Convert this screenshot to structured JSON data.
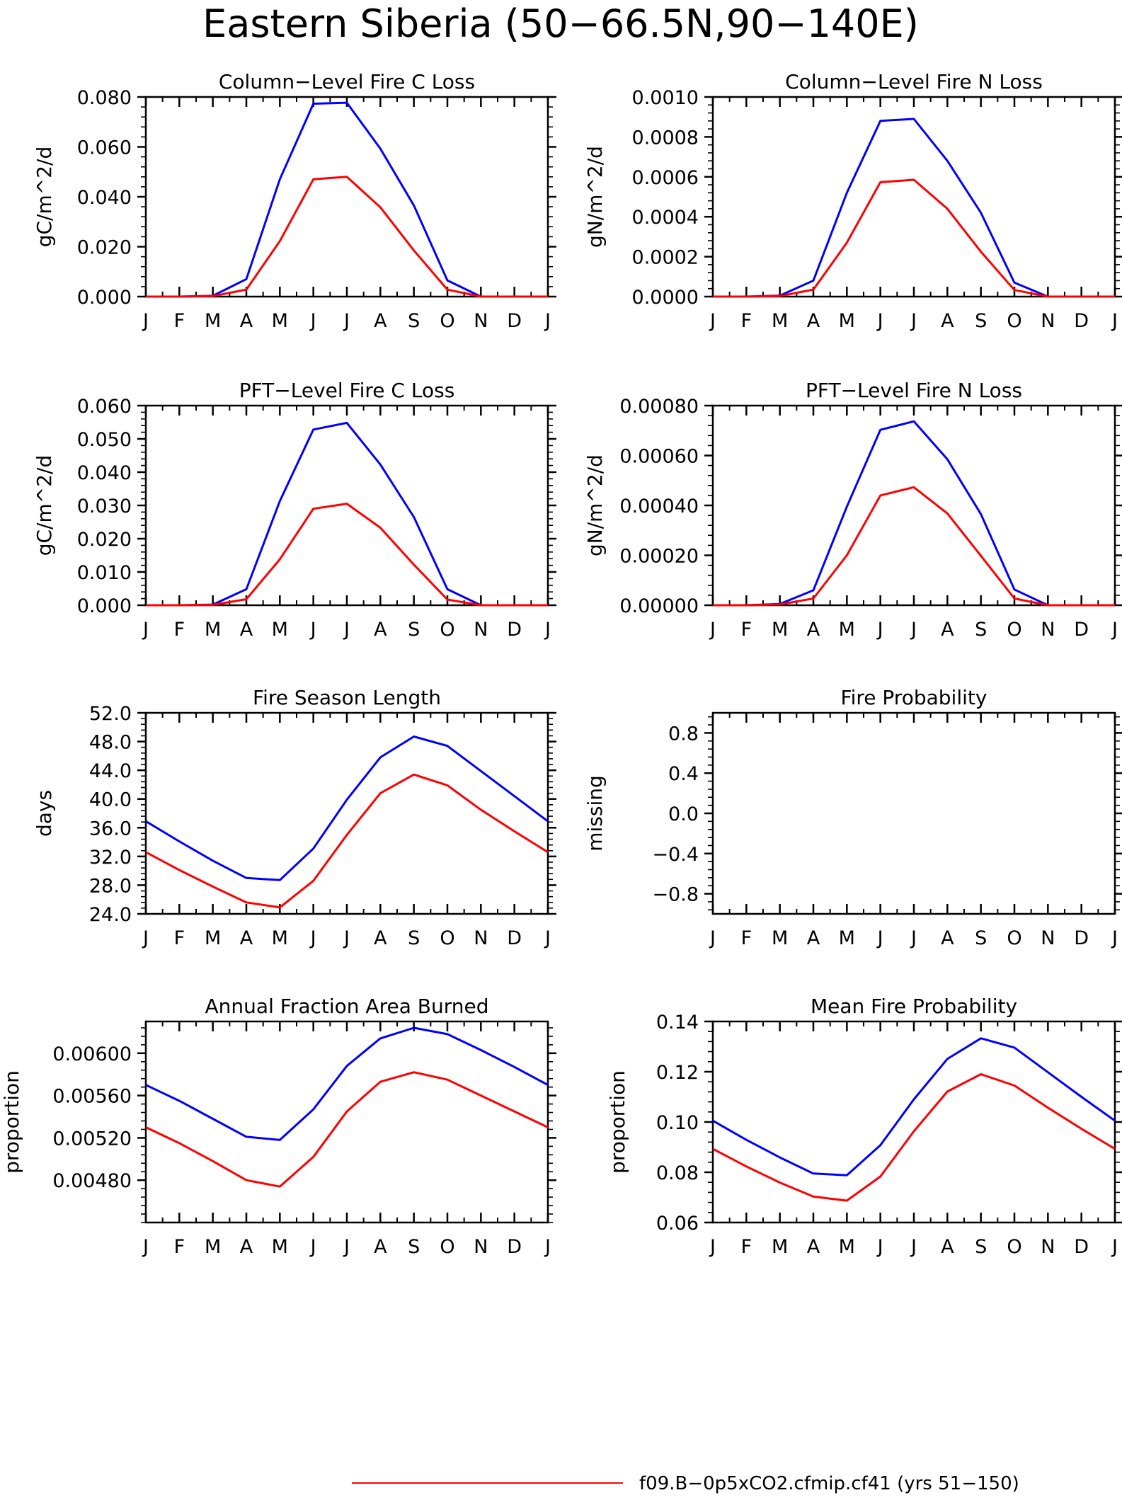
{
  "title": "Eastern Siberia (50−66.5N,90−140E)",
  "months": [
    "J",
    "F",
    "M",
    "A",
    "M",
    "J",
    "J",
    "A",
    "S",
    "O",
    "N",
    "D",
    "J"
  ],
  "colors": {
    "series_1": "#ff0000",
    "series_2": "#0000ff",
    "axis": "#000000"
  },
  "legend": {
    "label": "f09.B−0p5xCO2.cfmip.cf41 (yrs 51−150)",
    "color": "#ff0000"
  },
  "chart_data": [
    {
      "type": "line",
      "title": "Column−Level Fire C Loss",
      "ylabel": "gC/m^2/d",
      "ylim": [
        0,
        0.08
      ],
      "yticks": [
        0,
        0.02,
        0.04,
        0.06,
        0.08
      ],
      "yticklabels": [
        "0.000",
        "0.020",
        "0.040",
        "0.060",
        "0.080"
      ],
      "x": [
        "J",
        "F",
        "M",
        "A",
        "M",
        "J",
        "J",
        "A",
        "S",
        "O",
        "N",
        "D",
        "J"
      ],
      "series": [
        {
          "color": "#0000ff",
          "values": [
            0,
            0,
            0.0003,
            0.007,
            0.047,
            0.0773,
            0.0777,
            0.0593,
            0.0365,
            0.0065,
            0.0,
            0,
            0
          ]
        },
        {
          "color": "#ff0000",
          "values": [
            0,
            0,
            0.0002,
            0.0028,
            0.0222,
            0.047,
            0.048,
            0.0358,
            0.0185,
            0.0028,
            0.0,
            0,
            0
          ]
        }
      ]
    },
    {
      "type": "line",
      "title": "Column−Level Fire N Loss",
      "ylabel": "gN/m^2/d",
      "ylim": [
        0,
        0.001
      ],
      "yticks": [
        0,
        0.0002,
        0.0004,
        0.0006,
        0.0008,
        0.001
      ],
      "yticklabels": [
        "0.0000",
        "0.0002",
        "0.0004",
        "0.0006",
        "0.0008",
        "0.0010"
      ],
      "x": [
        "J",
        "F",
        "M",
        "A",
        "M",
        "J",
        "J",
        "A",
        "S",
        "O",
        "N",
        "D",
        "J"
      ],
      "series": [
        {
          "color": "#0000ff",
          "values": [
            0,
            0,
            5e-06,
            8e-05,
            0.00052,
            0.00088,
            0.00089,
            0.00068,
            0.00042,
            7e-05,
            0.0,
            0,
            0
          ]
        },
        {
          "color": "#ff0000",
          "values": [
            0,
            0,
            3e-06,
            3.5e-05,
            0.00027,
            0.000573,
            0.000585,
            0.00044,
            0.000225,
            3.3e-05,
            0.0,
            0,
            0
          ]
        }
      ]
    },
    {
      "type": "line",
      "title": "PFT−Level Fire C Loss",
      "ylabel": "gC/m^2/d",
      "ylim": [
        0,
        0.06
      ],
      "yticks": [
        0,
        0.01,
        0.02,
        0.03,
        0.04,
        0.05,
        0.06
      ],
      "yticklabels": [
        "0.000",
        "0.010",
        "0.020",
        "0.030",
        "0.040",
        "0.050",
        "0.060"
      ],
      "x": [
        "J",
        "F",
        "M",
        "A",
        "M",
        "J",
        "J",
        "A",
        "S",
        "O",
        "N",
        "D",
        "J"
      ],
      "series": [
        {
          "color": "#0000ff",
          "values": [
            0,
            0,
            0.0002,
            0.0048,
            0.0313,
            0.0528,
            0.0548,
            0.0423,
            0.0265,
            0.0048,
            0.0,
            0,
            0
          ]
        },
        {
          "color": "#ff0000",
          "values": [
            0,
            0,
            0.0001,
            0.0018,
            0.0138,
            0.029,
            0.0305,
            0.0233,
            0.0122,
            0.0017,
            0.0,
            0,
            0
          ]
        }
      ]
    },
    {
      "type": "line",
      "title": "PFT−Level Fire N Loss",
      "ylabel": "gN/m^2/d",
      "ylim": [
        0,
        0.0008
      ],
      "yticks": [
        0,
        0.0002,
        0.0004,
        0.0006,
        0.0008
      ],
      "yticklabels": [
        "0.00000",
        "0.00020",
        "0.00040",
        "0.00060",
        "0.00080"
      ],
      "x": [
        "J",
        "F",
        "M",
        "A",
        "M",
        "J",
        "J",
        "A",
        "S",
        "O",
        "N",
        "D",
        "J"
      ],
      "series": [
        {
          "color": "#0000ff",
          "values": [
            0,
            0,
            5e-06,
            6e-05,
            0.000395,
            0.000703,
            0.000737,
            0.000585,
            0.000365,
            6.3e-05,
            0.0,
            0,
            0
          ]
        },
        {
          "color": "#ff0000",
          "values": [
            0,
            0,
            3e-06,
            2.7e-05,
            0.0002,
            0.00044,
            0.000473,
            0.000368,
            0.000198,
            2.7e-05,
            0.0,
            0,
            0
          ]
        }
      ]
    },
    {
      "type": "line",
      "title": "Fire Season Length",
      "ylabel": "days",
      "ylim": [
        24,
        52
      ],
      "yticks": [
        24,
        28,
        32,
        36,
        40,
        44,
        48,
        52
      ],
      "yticklabels": [
        "24.0",
        "28.0",
        "32.0",
        "36.0",
        "40.0",
        "44.0",
        "48.0",
        "52.0"
      ],
      "x": [
        "J",
        "F",
        "M",
        "A",
        "M",
        "J",
        "J",
        "A",
        "S",
        "O",
        "N",
        "D",
        "J"
      ],
      "series": [
        {
          "color": "#0000ff",
          "values": [
            36.9,
            34.1,
            31.4,
            29.0,
            28.7,
            33.1,
            39.9,
            45.8,
            48.7,
            47.4,
            43.9,
            40.4,
            36.9
          ]
        },
        {
          "color": "#ff0000",
          "values": [
            32.6,
            30.1,
            27.8,
            25.6,
            24.9,
            28.6,
            35.0,
            40.8,
            43.4,
            41.9,
            38.5,
            35.5,
            32.6
          ]
        }
      ]
    },
    {
      "type": "line",
      "title": "Fire Probability",
      "ylabel": "missing",
      "ylim": [
        -1,
        1
      ],
      "yticks": [
        -0.8,
        -0.4,
        0,
        0.4,
        0.8
      ],
      "yticklabels": [
        "−0.8",
        "−0.4",
        "0.0",
        "0.4",
        "0.8"
      ],
      "x": [
        "J",
        "F",
        "M",
        "A",
        "M",
        "J",
        "J",
        "A",
        "S",
        "O",
        "N",
        "D",
        "J"
      ],
      "series": []
    },
    {
      "type": "line",
      "title": "Annual Fraction Area Burned",
      "ylabel": "proportion",
      "ylim": [
        0.0044,
        0.0063
      ],
      "yticks": [
        0.0048,
        0.0052,
        0.0056,
        0.006
      ],
      "yticklabels": [
        "0.00480",
        "0.00520",
        "0.00560",
        "0.00600"
      ],
      "x": [
        "J",
        "F",
        "M",
        "A",
        "M",
        "J",
        "J",
        "A",
        "S",
        "O",
        "N",
        "D",
        "J"
      ],
      "series": [
        {
          "color": "#0000ff",
          "values": [
            0.0057,
            0.00555,
            0.00538,
            0.00521,
            0.00518,
            0.00547,
            0.00588,
            0.00614,
            0.00624,
            0.00618,
            0.00603,
            0.00587,
            0.0057
          ]
        },
        {
          "color": "#ff0000",
          "values": [
            0.0053,
            0.00515,
            0.00498,
            0.0048,
            0.00474,
            0.00502,
            0.00545,
            0.00573,
            0.00582,
            0.00575,
            0.0056,
            0.00545,
            0.0053
          ]
        }
      ]
    },
    {
      "type": "line",
      "title": "Mean Fire Probability",
      "ylabel": "proportion",
      "ylim": [
        0.06,
        0.14
      ],
      "yticks": [
        0.06,
        0.08,
        0.1,
        0.12,
        0.14
      ],
      "yticklabels": [
        "0.06",
        "0.08",
        "0.10",
        "0.12",
        "0.14"
      ],
      "x": [
        "J",
        "F",
        "M",
        "A",
        "M",
        "J",
        "J",
        "A",
        "S",
        "O",
        "N",
        "D",
        "J"
      ],
      "series": [
        {
          "color": "#0000ff",
          "values": [
            0.1005,
            0.0929,
            0.0859,
            0.0795,
            0.0788,
            0.0908,
            0.109,
            0.1251,
            0.1333,
            0.1296,
            0.1198,
            0.11,
            0.1005
          ]
        },
        {
          "color": "#ff0000",
          "values": [
            0.0893,
            0.0823,
            0.0759,
            0.0703,
            0.0687,
            0.0783,
            0.0963,
            0.1121,
            0.119,
            0.1145,
            0.1057,
            0.0973,
            0.0893
          ]
        }
      ]
    }
  ]
}
